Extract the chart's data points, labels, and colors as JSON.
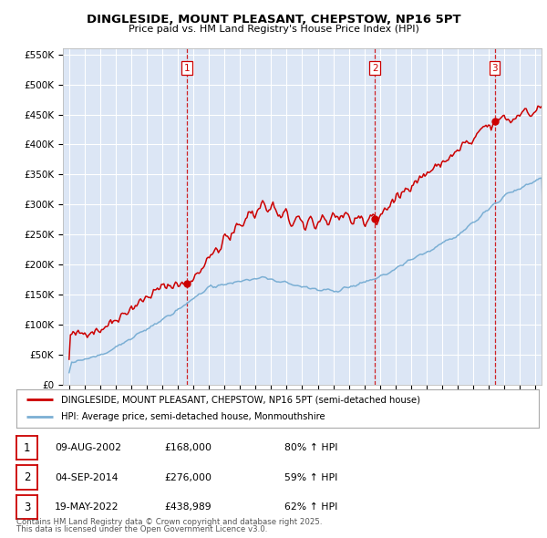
{
  "title": "DINGLESIDE, MOUNT PLEASANT, CHEPSTOW, NP16 5PT",
  "subtitle": "Price paid vs. HM Land Registry's House Price Index (HPI)",
  "legend_line1": "DINGLESIDE, MOUNT PLEASANT, CHEPSTOW, NP16 5PT (semi-detached house)",
  "legend_line2": "HPI: Average price, semi-detached house, Monmouthshire",
  "footer1": "Contains HM Land Registry data © Crown copyright and database right 2025.",
  "footer2": "This data is licensed under the Open Government Licence v3.0.",
  "table": [
    {
      "num": "1",
      "date": "09-AUG-2002",
      "price": "£168,000",
      "hpi": "80% ↑ HPI"
    },
    {
      "num": "2",
      "date": "04-SEP-2014",
      "price": "£276,000",
      "hpi": "59% ↑ HPI"
    },
    {
      "num": "3",
      "date": "19-MAY-2022",
      "price": "£438,989",
      "hpi": "62% ↑ HPI"
    }
  ],
  "vline_dates": [
    2002.6,
    2014.67,
    2022.38
  ],
  "sale_prices": [
    168000,
    276000,
    438989
  ],
  "sale_years": [
    2002.6,
    2014.67,
    2022.38
  ],
  "ylim": [
    0,
    560000
  ],
  "yticks": [
    0,
    50000,
    100000,
    150000,
    200000,
    250000,
    300000,
    350000,
    400000,
    450000,
    500000,
    550000
  ],
  "xlim_start": 1994.6,
  "xlim_end": 2025.4,
  "bg_color": "#dce6f5",
  "red_color": "#cc0000",
  "blue_color": "#7bafd4",
  "vline_color": "#cc0000",
  "grid_color": "#ffffff"
}
